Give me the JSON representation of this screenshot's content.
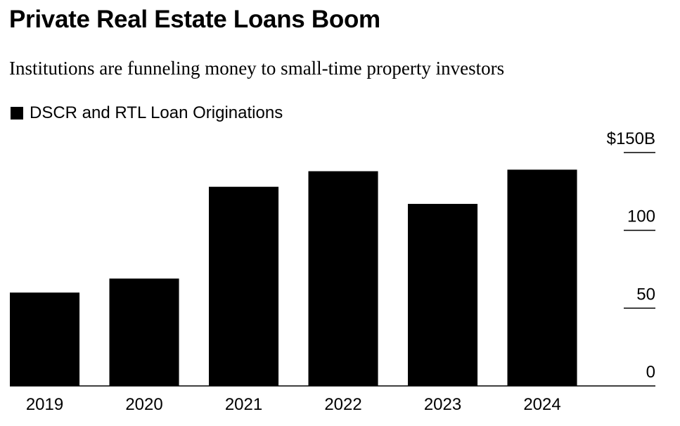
{
  "chart_data": {
    "type": "bar",
    "title": "Private Real Estate Loans Boom",
    "subtitle": "Institutions are funneling money to small-time property investors",
    "legend": {
      "position": "top-left",
      "entries": [
        "DSCR and RTL Loan Originations"
      ]
    },
    "categories": [
      "2019",
      "2020",
      "2021",
      "2022",
      "2023",
      "2024"
    ],
    "series": [
      {
        "name": "DSCR and RTL Loan Originations",
        "values": [
          60,
          69,
          128,
          138,
          117,
          139
        ],
        "color": "#000000"
      }
    ],
    "ylim": [
      0,
      150
    ],
    "yticks": [
      0,
      50,
      100,
      150
    ],
    "ytick_labels": [
      "0",
      "50",
      "100",
      "$150B"
    ],
    "yaxis_position": "right",
    "grid": false
  }
}
